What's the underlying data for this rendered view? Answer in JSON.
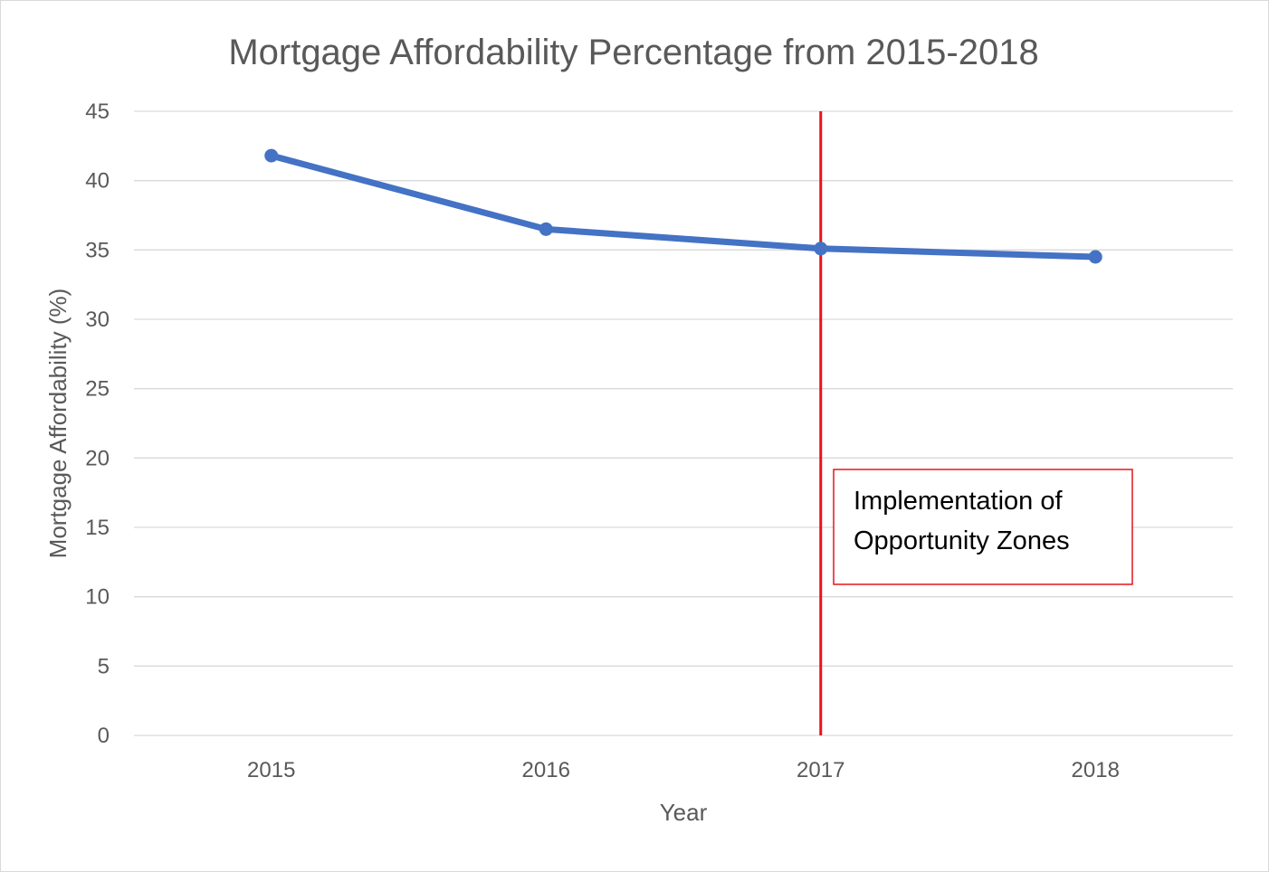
{
  "chart_data": {
    "type": "line",
    "title": "Mortgage Affordability Percentage from 2015-2018",
    "xlabel": "Year",
    "ylabel": "Mortgage Affordability (%)",
    "categories": [
      "2015",
      "2016",
      "2017",
      "2018"
    ],
    "series": [
      {
        "values": [
          41.8,
          36.5,
          35.1,
          34.5
        ],
        "color": "#4472C4"
      }
    ],
    "ylim": [
      0,
      45
    ],
    "yticks": [
      0,
      5,
      10,
      15,
      20,
      25,
      30,
      35,
      40,
      45
    ],
    "grid": true,
    "legend": "none",
    "reference_line": {
      "x": "2017",
      "color": "#E8121A"
    },
    "annotation": {
      "lines": [
        "Implementation of",
        "Opportunity Zones"
      ],
      "border_color": "#E8121A"
    },
    "colors": {
      "grid": "#D9D9D9",
      "text": "#595959"
    }
  }
}
